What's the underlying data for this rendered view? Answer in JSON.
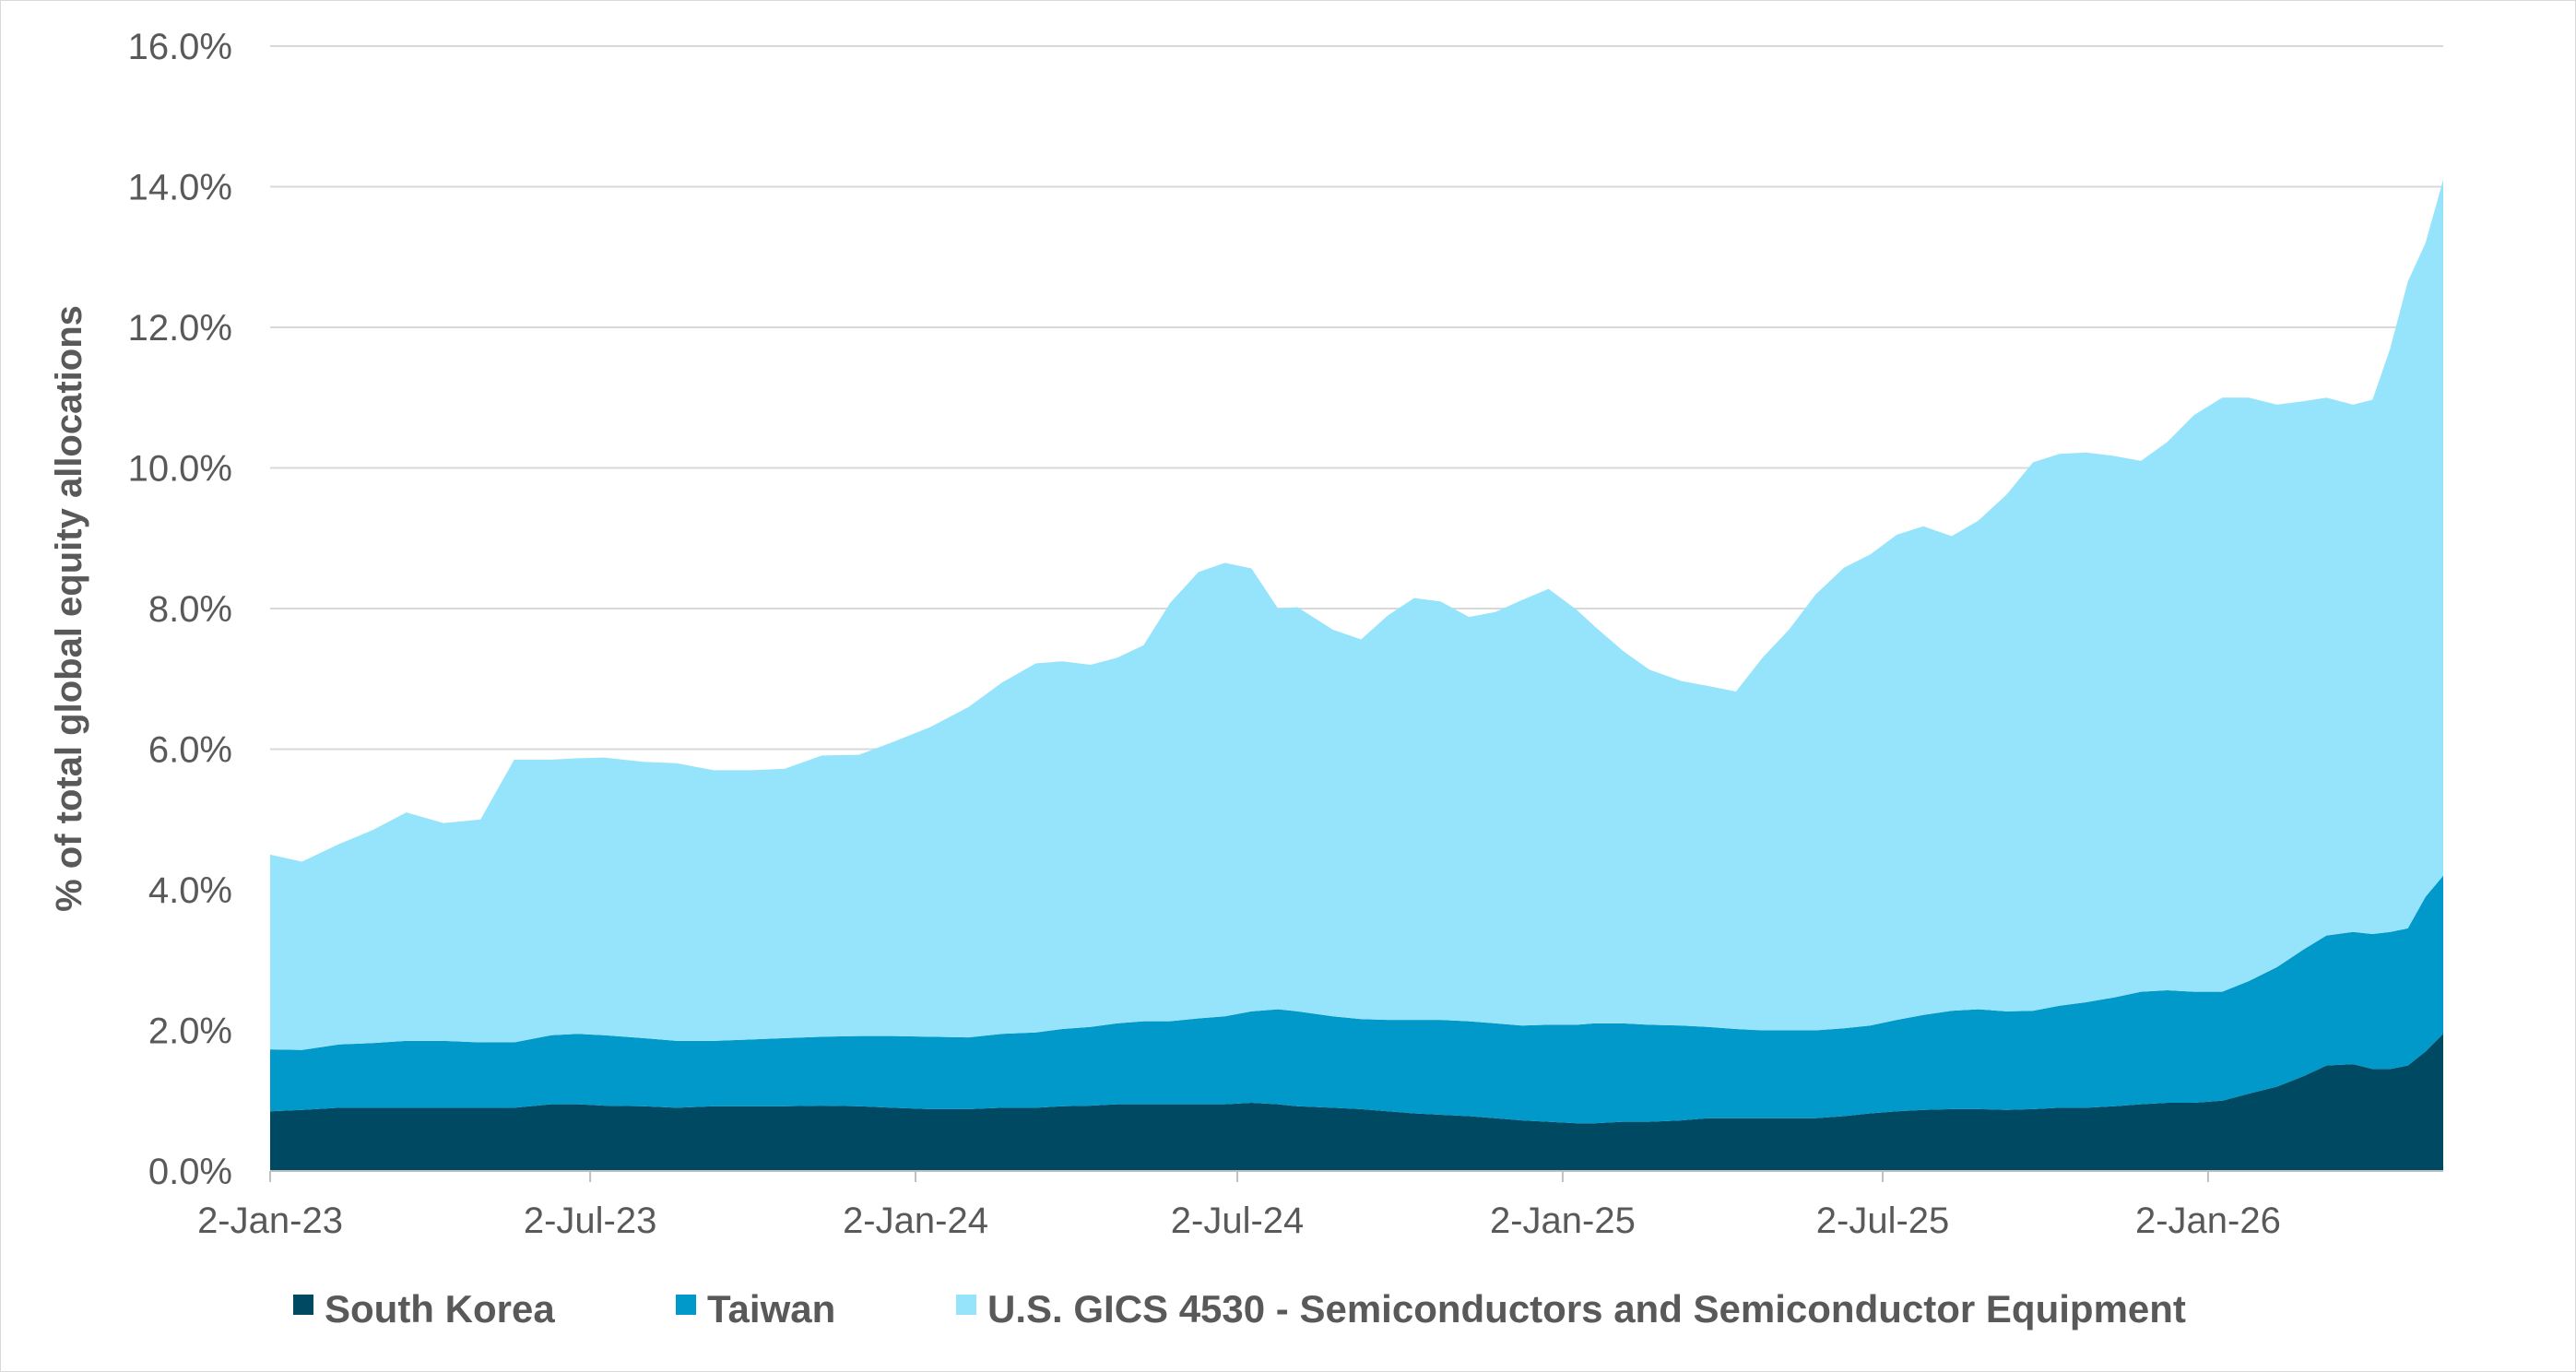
{
  "chart_data": {
    "type": "area",
    "stacked": true,
    "title": "",
    "ylabel": "% of total global equity allocations",
    "xlabel": "",
    "ylim": [
      0,
      16
    ],
    "y_ticks": [
      "0.0%",
      "2.0%",
      "4.0%",
      "6.0%",
      "8.0%",
      "10.0%",
      "12.0%",
      "14.0%",
      "16.0%"
    ],
    "x_ticks": [
      "2-Jan-23",
      "2-Jul-23",
      "2-Jan-24",
      "2-Jul-24",
      "2-Jan-25",
      "2-Jul-25",
      "2-Jan-26"
    ],
    "x_tick_dates": [
      "2023-01-02",
      "2023-07-02",
      "2024-01-02",
      "2024-07-02",
      "2025-01-02",
      "2025-07-02",
      "2026-01-02"
    ],
    "x_range": [
      "2023-01-02",
      "2026-05-15"
    ],
    "grid": "horizontal",
    "legend_position": "bottom",
    "x": [
      "2023-01-02",
      "2023-01-20",
      "2023-02-10",
      "2023-03-01",
      "2023-03-20",
      "2023-04-10",
      "2023-05-01",
      "2023-05-20",
      "2023-06-10",
      "2023-06-25",
      "2023-07-10",
      "2023-08-01",
      "2023-08-20",
      "2023-09-10",
      "2023-10-01",
      "2023-10-20",
      "2023-11-10",
      "2023-12-01",
      "2023-12-20",
      "2024-01-10",
      "2024-02-01",
      "2024-02-20",
      "2024-03-10",
      "2024-03-25",
      "2024-04-10",
      "2024-04-25",
      "2024-05-10",
      "2024-05-25",
      "2024-06-10",
      "2024-06-25",
      "2024-07-10",
      "2024-07-25",
      "2024-08-05",
      "2024-08-25",
      "2024-09-10",
      "2024-09-25",
      "2024-10-10",
      "2024-10-25",
      "2024-11-10",
      "2024-11-25",
      "2024-12-10",
      "2024-12-25",
      "2025-01-10",
      "2025-01-20",
      "2025-02-05",
      "2025-02-20",
      "2025-03-10",
      "2025-03-25",
      "2025-04-10",
      "2025-04-25",
      "2025-05-10",
      "2025-05-25",
      "2025-06-10",
      "2025-06-25",
      "2025-07-10",
      "2025-07-25",
      "2025-08-10",
      "2025-08-25",
      "2025-09-10",
      "2025-09-25",
      "2025-10-10",
      "2025-10-25",
      "2025-11-10",
      "2025-11-25",
      "2025-12-10",
      "2025-12-25",
      "2026-01-10",
      "2026-01-25",
      "2026-02-10",
      "2026-02-25",
      "2026-03-10",
      "2026-03-25",
      "2026-04-05",
      "2026-04-15",
      "2026-04-25",
      "2026-05-05",
      "2026-05-15"
    ],
    "series": [
      {
        "name": "South Korea",
        "color": "#004963",
        "values": [
          0.85,
          0.87,
          0.9,
          0.9,
          0.9,
          0.9,
          0.9,
          0.9,
          0.95,
          0.95,
          0.93,
          0.92,
          0.9,
          0.92,
          0.92,
          0.92,
          0.93,
          0.92,
          0.9,
          0.88,
          0.88,
          0.9,
          0.9,
          0.92,
          0.93,
          0.95,
          0.95,
          0.95,
          0.95,
          0.95,
          0.97,
          0.95,
          0.92,
          0.9,
          0.88,
          0.85,
          0.82,
          0.8,
          0.78,
          0.75,
          0.72,
          0.7,
          0.68,
          0.68,
          0.7,
          0.7,
          0.72,
          0.75,
          0.75,
          0.75,
          0.75,
          0.75,
          0.78,
          0.82,
          0.85,
          0.87,
          0.88,
          0.88,
          0.87,
          0.88,
          0.9,
          0.9,
          0.92,
          0.95,
          0.97,
          0.97,
          1.0,
          1.1,
          1.2,
          1.35,
          1.5,
          1.52,
          1.45,
          1.45,
          1.5,
          1.7,
          1.95
        ]
      },
      {
        "name": "Taiwan",
        "color": "#0099c9",
        "values": [
          0.88,
          0.85,
          0.9,
          0.92,
          0.95,
          0.95,
          0.93,
          0.93,
          0.98,
          1.0,
          1.0,
          0.97,
          0.95,
          0.93,
          0.95,
          0.97,
          0.98,
          1.0,
          1.02,
          1.03,
          1.02,
          1.05,
          1.07,
          1.1,
          1.12,
          1.15,
          1.18,
          1.18,
          1.22,
          1.25,
          1.3,
          1.35,
          1.35,
          1.3,
          1.28,
          1.3,
          1.33,
          1.35,
          1.35,
          1.35,
          1.35,
          1.38,
          1.4,
          1.42,
          1.4,
          1.38,
          1.35,
          1.3,
          1.27,
          1.25,
          1.25,
          1.25,
          1.25,
          1.25,
          1.3,
          1.35,
          1.4,
          1.42,
          1.4,
          1.4,
          1.45,
          1.5,
          1.55,
          1.6,
          1.6,
          1.58,
          1.55,
          1.6,
          1.7,
          1.8,
          1.85,
          1.88,
          1.92,
          1.95,
          1.95,
          2.2,
          2.25
        ]
      },
      {
        "name": "U.S. GICS 4530 - Semiconductors and Semiconductor Equipment",
        "color": "#96e4fb",
        "values": [
          2.77,
          2.68,
          2.85,
          3.03,
          3.25,
          3.1,
          3.17,
          4.02,
          3.92,
          3.92,
          3.95,
          3.93,
          3.95,
          3.85,
          3.83,
          3.83,
          4.0,
          4.0,
          4.18,
          4.4,
          4.7,
          5.0,
          5.25,
          5.23,
          5.15,
          5.2,
          5.35,
          5.95,
          6.35,
          6.45,
          6.3,
          5.7,
          5.75,
          5.5,
          5.4,
          5.75,
          6.0,
          5.95,
          5.75,
          5.85,
          6.05,
          6.2,
          5.9,
          5.65,
          5.3,
          5.05,
          4.9,
          4.85,
          4.8,
          5.3,
          5.7,
          6.2,
          6.55,
          6.7,
          6.9,
          6.95,
          6.75,
          6.95,
          7.35,
          7.8,
          7.85,
          7.82,
          7.7,
          7.55,
          7.8,
          8.2,
          8.45,
          8.3,
          8.0,
          7.8,
          7.65,
          7.5,
          7.6,
          8.3,
          9.2,
          9.3,
          9.9
        ]
      }
    ]
  }
}
